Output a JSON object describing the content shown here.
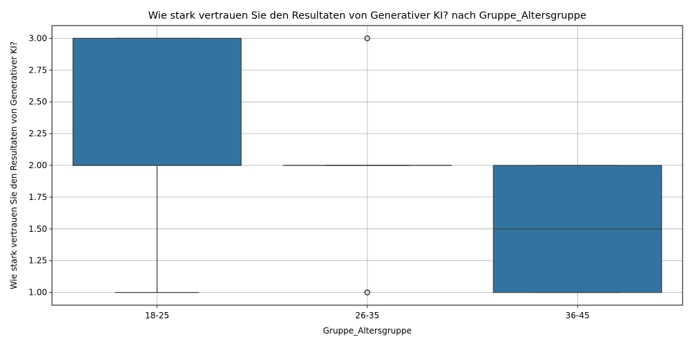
{
  "chart_data": {
    "type": "box",
    "title": "Wie stark vertrauen Sie den Resultaten von Generativer KI? nach Gruppe_Altersgruppe",
    "xlabel": "Gruppe_Altersgruppe",
    "ylabel": "Wie stark vertrauen Sie den Resultaten von Generativer KI?",
    "ylim": [
      0.9,
      3.1
    ],
    "yticks": [
      "1.00",
      "1.25",
      "1.50",
      "1.75",
      "2.00",
      "2.25",
      "2.50",
      "2.75",
      "3.00"
    ],
    "grid": true,
    "box_color": "#3274a1",
    "categories": [
      "18-25",
      "26-35",
      "36-45"
    ],
    "boxes": [
      {
        "category": "18-25",
        "whisker_low": 1,
        "q1": 2,
        "median": 2,
        "q3": 3,
        "whisker_high": 3,
        "outliers": []
      },
      {
        "category": "26-35",
        "whisker_low": 2,
        "q1": 2,
        "median": 2,
        "q3": 2,
        "whisker_high": 2,
        "outliers": [
          1,
          3
        ]
      },
      {
        "category": "36-45",
        "whisker_low": 1,
        "q1": 1,
        "median": 1.5,
        "q3": 2,
        "whisker_high": 2,
        "outliers": []
      }
    ]
  }
}
